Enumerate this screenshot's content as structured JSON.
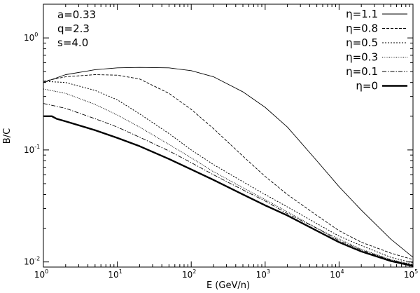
{
  "chart_data": {
    "type": "line",
    "xlabel": "E (GeV/n)",
    "ylabel": "B/C",
    "x_scale": "log",
    "y_scale": "log",
    "xlim": [
      1,
      100000
    ],
    "ylim": [
      0.009,
      2.0
    ],
    "x_ticks": [
      {
        "value": 1,
        "base": "10",
        "exp": "0"
      },
      {
        "value": 10,
        "base": "10",
        "exp": "1"
      },
      {
        "value": 100,
        "base": "10",
        "exp": "2"
      },
      {
        "value": 1000,
        "base": "10",
        "exp": "3"
      },
      {
        "value": 10000,
        "base": "10",
        "exp": "4"
      },
      {
        "value": 100000,
        "base": "10",
        "exp": "5"
      }
    ],
    "y_ticks": [
      {
        "value": 0.01,
        "base": "10",
        "exp": "-2"
      },
      {
        "value": 0.1,
        "base": "10",
        "exp": "-1"
      },
      {
        "value": 1,
        "base": "10",
        "exp": "0"
      }
    ],
    "grid": false,
    "legend_position": "top-right",
    "parameters": [
      "a=0.33",
      "q=2.3",
      "s=4.0"
    ],
    "series": [
      {
        "name": "η=1.1",
        "style": "solid-thin",
        "x": [
          1,
          2,
          5,
          10,
          20,
          50,
          100,
          200,
          500,
          1000,
          2000,
          5000,
          10000,
          20000,
          50000,
          100000
        ],
        "y": [
          0.4,
          0.47,
          0.52,
          0.54,
          0.545,
          0.54,
          0.51,
          0.45,
          0.33,
          0.24,
          0.16,
          0.08,
          0.047,
          0.029,
          0.016,
          0.011
        ]
      },
      {
        "name": "η=0.8",
        "style": "dashed",
        "x": [
          1,
          2,
          5,
          10,
          20,
          50,
          100,
          200,
          500,
          1000,
          2000,
          5000,
          10000,
          20000,
          50000,
          100000
        ],
        "y": [
          0.41,
          0.45,
          0.47,
          0.465,
          0.43,
          0.32,
          0.23,
          0.155,
          0.088,
          0.058,
          0.04,
          0.026,
          0.019,
          0.015,
          0.012,
          0.0105
        ]
      },
      {
        "name": "η=0.5",
        "style": "dotted",
        "x": [
          1,
          2,
          5,
          10,
          20,
          50,
          100,
          200,
          500,
          1000,
          2000,
          5000,
          10000,
          20000,
          50000,
          100000
        ],
        "y": [
          0.41,
          0.4,
          0.34,
          0.28,
          0.21,
          0.14,
          0.1,
          0.074,
          0.052,
          0.04,
          0.031,
          0.022,
          0.017,
          0.014,
          0.011,
          0.0098
        ]
      },
      {
        "name": "η=0.3",
        "style": "fine-dotted",
        "x": [
          1,
          2,
          5,
          10,
          20,
          50,
          100,
          200,
          500,
          1000,
          2000,
          5000,
          10000,
          20000,
          50000,
          100000
        ],
        "y": [
          0.35,
          0.32,
          0.255,
          0.205,
          0.16,
          0.112,
          0.085,
          0.064,
          0.046,
          0.036,
          0.028,
          0.02,
          0.016,
          0.013,
          0.0105,
          0.0095
        ]
      },
      {
        "name": "η=0.1",
        "style": "dash-dot",
        "x": [
          1,
          2,
          5,
          10,
          20,
          50,
          100,
          200,
          500,
          1000,
          2000,
          5000,
          10000,
          20000,
          50000,
          100000
        ],
        "y": [
          0.26,
          0.235,
          0.19,
          0.16,
          0.13,
          0.098,
          0.077,
          0.06,
          0.044,
          0.035,
          0.027,
          0.02,
          0.0155,
          0.0128,
          0.0104,
          0.0094
        ]
      },
      {
        "name": "η=0",
        "style": "solid-thick",
        "x": [
          1,
          1.3,
          1.5,
          2,
          5,
          10,
          20,
          50,
          100,
          200,
          500,
          1000,
          2000,
          5000,
          10000,
          20000,
          50000,
          100000
        ],
        "y": [
          0.2,
          0.2,
          0.19,
          0.18,
          0.15,
          0.128,
          0.108,
          0.083,
          0.067,
          0.054,
          0.04,
          0.032,
          0.026,
          0.019,
          0.015,
          0.0124,
          0.0102,
          0.0092
        ]
      }
    ]
  }
}
